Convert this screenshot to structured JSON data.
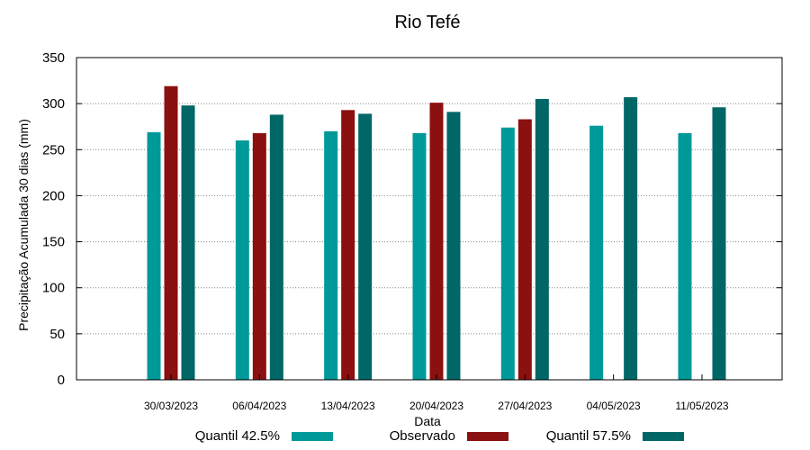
{
  "chart_data": {
    "type": "bar",
    "title": "Rio Tefé",
    "xlabel": "Data",
    "ylabel": "Precipitação Acumulada 30 dias (mm)",
    "ylim": [
      0,
      350
    ],
    "yticks": [
      0,
      50,
      100,
      150,
      200,
      250,
      300,
      350
    ],
    "grid": "horizontal dotted",
    "legend_position": "bottom",
    "categories": [
      "30/03/2023",
      "06/04/2023",
      "13/04/2023",
      "20/04/2023",
      "27/04/2023",
      "04/05/2023",
      "11/05/2023"
    ],
    "series": [
      {
        "name": "Quantil 42.5%",
        "color": "#009999",
        "values": [
          269,
          260,
          270,
          268,
          274,
          276,
          268
        ]
      },
      {
        "name": "Observado",
        "color": "#8B1010",
        "values": [
          319,
          268,
          293,
          301,
          283,
          null,
          null
        ]
      },
      {
        "name": "Quantil 57.5%",
        "color": "#006666",
        "values": [
          298,
          288,
          289,
          291,
          305,
          307,
          296
        ]
      }
    ]
  }
}
